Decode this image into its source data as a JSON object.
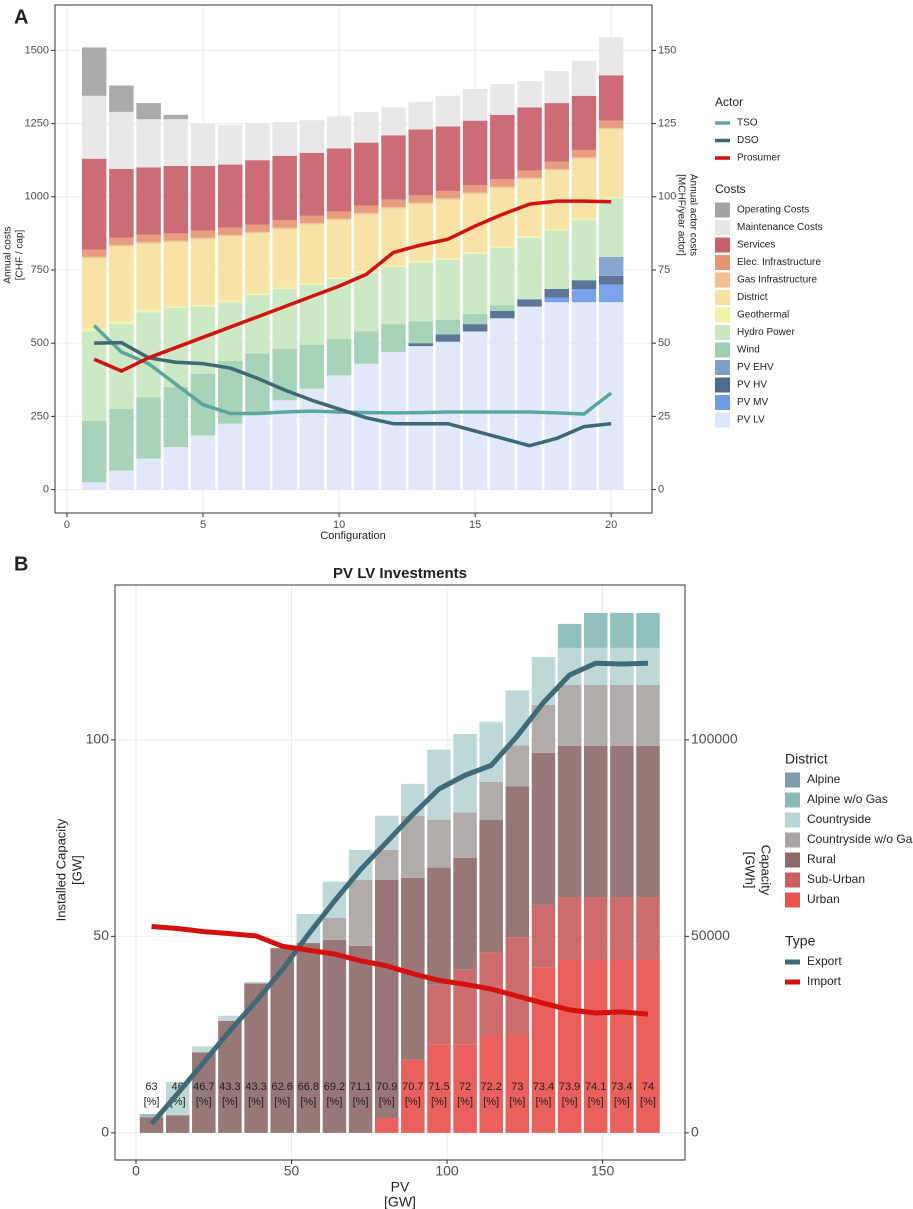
{
  "chart_data": [
    {
      "type": "bar",
      "panel": "A",
      "xlabel": "Configuration",
      "ylabel": [
        "Annual costs",
        "[CHF / cap]"
      ],
      "y2label": [
        "Annual actor costs",
        "[MCHF/year actor]"
      ],
      "x": [
        1,
        2,
        3,
        4,
        5,
        6,
        7,
        8,
        9,
        10,
        11,
        12,
        13,
        14,
        15,
        16,
        17,
        18,
        19,
        20
      ],
      "xlim": [
        -0.44,
        21.5
      ],
      "xticks": [
        0,
        5,
        10,
        15,
        20
      ],
      "ylim": [
        -80,
        1655
      ],
      "yticks": [
        0,
        250,
        500,
        750,
        1000,
        1250,
        1500
      ],
      "y2lim": [
        -8,
        165.5
      ],
      "y2ticks": [
        0,
        25,
        50,
        75,
        100,
        125,
        150
      ],
      "grid": true,
      "stacked": true,
      "legend_titles": {
        "series": "Costs",
        "line_series": "Actor"
      },
      "series": [
        {
          "name": "PV LV",
          "color": "#dde6f8",
          "values": [
            25,
            65,
            105,
            145,
            185,
            225,
            265,
            305,
            345,
            390,
            430,
            470,
            490,
            505,
            540,
            585,
            625,
            640,
            640,
            640
          ]
        },
        {
          "name": "PV MV",
          "color": "#6f9bea",
          "values": [
            0,
            0,
            0,
            0,
            0,
            0,
            0,
            0,
            0,
            0,
            0,
            0,
            0,
            0,
            0,
            0,
            0,
            15,
            45,
            60
          ]
        },
        {
          "name": "PV HV",
          "color": "#4f6a8f",
          "values": [
            0,
            0,
            0,
            0,
            0,
            0,
            0,
            0,
            0,
            0,
            0,
            0,
            10,
            25,
            25,
            25,
            25,
            30,
            30,
            30
          ]
        },
        {
          "name": "PV EHV",
          "color": "#7d9fcc",
          "values": [
            0,
            0,
            0,
            0,
            0,
            0,
            0,
            0,
            0,
            0,
            0,
            0,
            0,
            0,
            0,
            0,
            0,
            0,
            0,
            65
          ]
        },
        {
          "name": "Wind",
          "color": "#9fcfb3",
          "values": [
            210,
            210,
            210,
            205,
            210,
            215,
            200,
            175,
            150,
            125,
            110,
            95,
            75,
            50,
            35,
            20,
            0,
            0,
            0,
            0
          ]
        },
        {
          "name": "Hydro Power",
          "color": "#c8e6c0",
          "values": [
            305,
            290,
            290,
            270,
            230,
            200,
            200,
            205,
            205,
            205,
            200,
            195,
            200,
            205,
            205,
            195,
            210,
            200,
            205,
            200
          ]
        },
        {
          "name": "Geothermal",
          "color": "#eef5a5",
          "values": [
            10,
            10,
            10,
            5,
            5,
            5,
            5,
            5,
            5,
            5,
            5,
            5,
            5,
            5,
            5,
            5,
            5,
            5,
            5,
            5
          ]
        },
        {
          "name": "District",
          "color": "#f7e1a0",
          "values": [
            240,
            255,
            225,
            220,
            225,
            220,
            205,
            200,
            200,
            195,
            195,
            195,
            195,
            200,
            200,
            200,
            195,
            200,
            205,
            230
          ]
        },
        {
          "name": "Gas Infrastructure",
          "color": "#f0c08f",
          "values": [
            5,
            5,
            5,
            5,
            5,
            5,
            5,
            5,
            5,
            5,
            5,
            5,
            5,
            5,
            5,
            5,
            5,
            5,
            5,
            5
          ]
        },
        {
          "name": "Elec. Infrastructure",
          "color": "#e59573",
          "values": [
            25,
            25,
            25,
            25,
            25,
            25,
            25,
            25,
            25,
            25,
            25,
            25,
            25,
            25,
            25,
            25,
            25,
            25,
            25,
            25
          ]
        },
        {
          "name": "Services",
          "color": "#c9606b",
          "values": [
            310,
            235,
            230,
            230,
            220,
            215,
            220,
            220,
            215,
            215,
            215,
            220,
            225,
            220,
            220,
            220,
            215,
            200,
            185,
            155
          ]
        },
        {
          "name": "Maintenance Costs",
          "color": "#e6e6e6",
          "values": [
            215,
            195,
            165,
            160,
            145,
            135,
            125,
            115,
            112,
            110,
            105,
            95,
            95,
            105,
            108,
            105,
            90,
            110,
            120,
            130
          ]
        },
        {
          "name": "Operating Costs",
          "color": "#a3a3a3",
          "values": [
            165,
            90,
            55,
            15,
            0,
            0,
            0,
            0,
            0,
            0,
            0,
            0,
            0,
            0,
            0,
            0,
            0,
            0,
            0,
            0
          ]
        }
      ],
      "line_series": [
        {
          "name": "TSO",
          "color": "#5aa7a0",
          "axis": "y2",
          "values": [
            56,
            47,
            43,
            36,
            29,
            26,
            26,
            26.5,
            26.8,
            26.5,
            26.3,
            26.2,
            26.3,
            26.5,
            26.5,
            26.5,
            26.5,
            26.2,
            25.8,
            33
          ]
        },
        {
          "name": "DSO",
          "color": "#3d6875",
          "axis": "y2",
          "values": [
            50,
            50.2,
            45,
            43.5,
            43,
            41.5,
            38,
            34,
            30.5,
            27.5,
            24.5,
            22.5,
            22.5,
            22.5,
            20,
            17.5,
            15,
            17.5,
            21.5,
            22.5
          ]
        },
        {
          "name": "Prosumer",
          "color": "#d4110f",
          "axis": "y2",
          "values": [
            44.5,
            40.5,
            45,
            48.5,
            52,
            55.5,
            59,
            62.5,
            66,
            69.5,
            73.5,
            81,
            83.5,
            85.5,
            90,
            94,
            97.5,
            98.5,
            98.5,
            98.3
          ]
        }
      ]
    },
    {
      "type": "bar",
      "panel": "B",
      "title": "PV LV Investments",
      "xlabel": [
        "PV",
        "[GW]"
      ],
      "ylabel": [
        "Installed Capacity",
        "[GW]"
      ],
      "y2label": [
        "Capacity",
        "[GWh]"
      ],
      "x": [
        5,
        13.4,
        21.8,
        30.2,
        38.6,
        47,
        55.4,
        63.8,
        72.2,
        80.6,
        89,
        97.4,
        105.8,
        114.2,
        122.6,
        131,
        139.4,
        147.8,
        156.2,
        164.6
      ],
      "xlim": [
        -6.75,
        176.5
      ],
      "xticks": [
        0,
        50,
        100,
        150
      ],
      "ylim": [
        -6.9,
        139.4
      ],
      "yticks": [
        0,
        50,
        100
      ],
      "y2lim": [
        -6900,
        139400
      ],
      "y2ticks": [
        0,
        50000,
        100000
      ],
      "grid": true,
      "stacked": true,
      "legend_titles": {
        "series": "District",
        "line_series": "Type"
      },
      "series": [
        {
          "name": "Urban",
          "color": "#e8534f",
          "values": [
            0,
            0,
            0,
            0,
            0,
            0,
            0,
            0,
            0,
            3.8,
            18.6,
            22.4,
            22.4,
            24.9,
            24.9,
            42,
            44,
            44,
            44,
            44
          ]
        },
        {
          "name": "Sub-Urban",
          "color": "#c9605f",
          "values": [
            0,
            0,
            0,
            0,
            0,
            0,
            0,
            0,
            0,
            0,
            0,
            15.3,
            19.1,
            21.1,
            24.9,
            16,
            16,
            16,
            16,
            16
          ]
        },
        {
          "name": "Rural",
          "color": "#8f6b6b",
          "values": [
            4,
            4.5,
            20.5,
            28.5,
            38,
            47,
            48.3,
            49.1,
            47.6,
            60.6,
            46.3,
            29.8,
            28.5,
            33.6,
            38.4,
            38.7,
            38.5,
            38.5,
            38.5,
            38.5
          ]
        },
        {
          "name": "Countryside w/o Gas",
          "color": "#aaa5a3",
          "values": [
            0,
            0,
            0,
            0,
            0,
            0,
            0,
            5.6,
            16.8,
            7.6,
            15.8,
            12.2,
            11.5,
            9.7,
            10.4,
            12.2,
            15.5,
            15.5,
            15.5,
            15.5
          ]
        },
        {
          "name": "Countryside",
          "color": "#b9d4d4",
          "values": [
            0,
            8.5,
            1.5,
            1.3,
            0.4,
            0,
            7.4,
            9.2,
            7.6,
            8.7,
            8.1,
            17.8,
            20,
            15.3,
            14,
            12.2,
            9.4,
            9.4,
            9.4,
            9.4
          ]
        },
        {
          "name": "Alpine w/o Gas",
          "color": "#88bcb7",
          "values": [
            0.8,
            0,
            0,
            0,
            0,
            0,
            0,
            0,
            0,
            0,
            0,
            0,
            0,
            0,
            0,
            0,
            6.1,
            8.9,
            8.9,
            8.9
          ]
        },
        {
          "name": "Alpine",
          "color": "#7f9fa8",
          "values": [
            0,
            0,
            0,
            0,
            0,
            0,
            0,
            0,
            0,
            0,
            0,
            0,
            0,
            0,
            0,
            0,
            0,
            0,
            0,
            0
          ]
        }
      ],
      "line_series": [
        {
          "name": "Export",
          "color": "#3f6b78",
          "axis": "y2",
          "values": [
            2300,
            10000,
            18000,
            26000,
            33500,
            41500,
            50500,
            59000,
            67000,
            74000,
            81000,
            87500,
            91000,
            93500,
            101000,
            109500,
            116500,
            119500,
            119300,
            119500
          ]
        },
        {
          "name": "Import",
          "color": "#d4110f",
          "axis": "y2",
          "values": [
            52500,
            52000,
            51200,
            50700,
            50100,
            47500,
            46500,
            45500,
            43800,
            42500,
            40500,
            38800,
            37800,
            36600,
            34800,
            33000,
            31300,
            30500,
            30800,
            30200
          ]
        }
      ],
      "annotations": {
        "unit": "[%]",
        "values": [
          63,
          46,
          46.7,
          43.3,
          43.3,
          62.6,
          66.8,
          69.2,
          71.1,
          70.9,
          70.7,
          71.5,
          72,
          72.2,
          73,
          73.4,
          73.9,
          74.1,
          73.4,
          74
        ]
      }
    }
  ]
}
